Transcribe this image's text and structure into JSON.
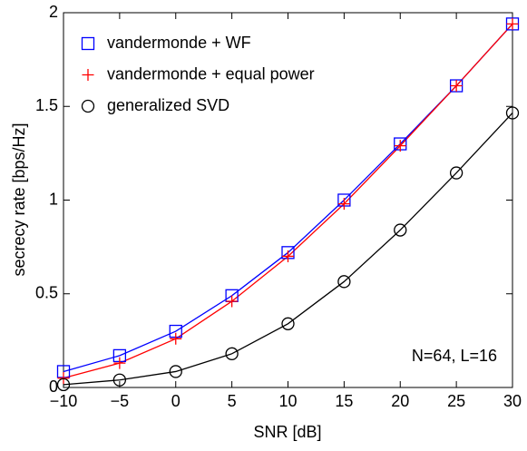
{
  "chart_data": {
    "type": "line",
    "xlabel": "SNR [dB]",
    "ylabel": "secrecy rate [bps/Hz]",
    "annotation": "N=64, L=16",
    "x": [
      -10,
      -5,
      0,
      5,
      10,
      15,
      20,
      25,
      30
    ],
    "series": [
      {
        "name": "vandermonde + WF",
        "color": "#0000ff",
        "marker": "square",
        "values": [
          0.085,
          0.17,
          0.3,
          0.49,
          0.72,
          1.0,
          1.3,
          1.61,
          1.94
        ]
      },
      {
        "name": "vandermonde + equal power",
        "color": "#ff0000",
        "marker": "plus",
        "values": [
          0.05,
          0.13,
          0.26,
          0.46,
          0.7,
          0.98,
          1.29,
          1.61,
          1.94
        ]
      },
      {
        "name": "generalized SVD",
        "color": "#000000",
        "marker": "circle",
        "values": [
          0.015,
          0.04,
          0.085,
          0.18,
          0.34,
          0.565,
          0.84,
          1.145,
          1.465
        ]
      }
    ],
    "xlim": [
      -10,
      30
    ],
    "xticks": [
      {
        "value": -10,
        "label": "−10"
      },
      {
        "value": -5,
        "label": "−5"
      },
      0,
      5,
      10,
      15,
      20,
      25,
      30
    ],
    "ylim": [
      0,
      2
    ],
    "yticks": [
      0,
      0.5,
      1,
      1.5,
      2
    ],
    "legend": "upper left",
    "grid": false
  }
}
